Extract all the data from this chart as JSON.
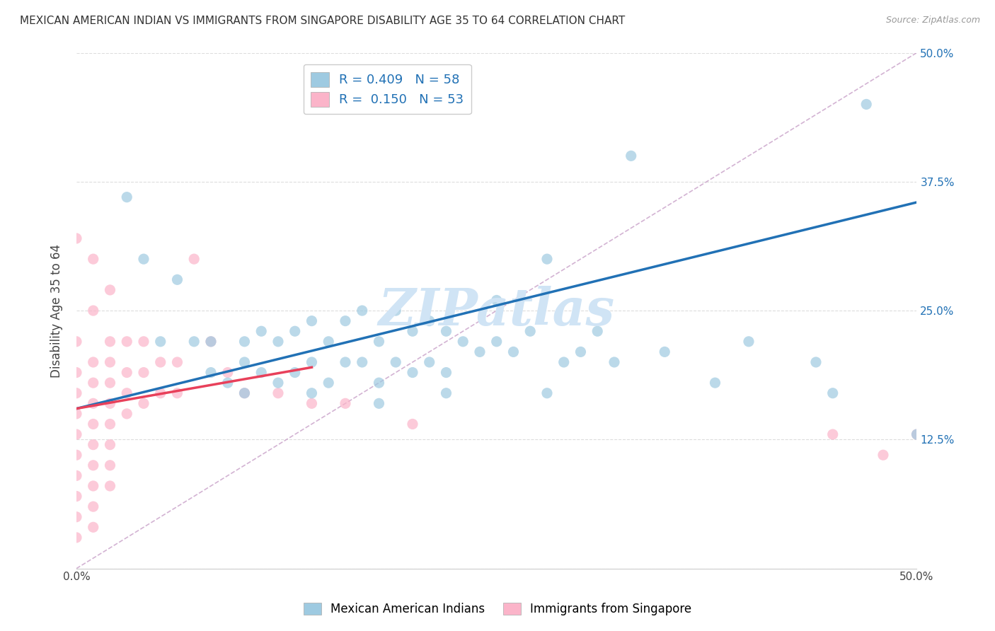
{
  "title": "MEXICAN AMERICAN INDIAN VS IMMIGRANTS FROM SINGAPORE DISABILITY AGE 35 TO 64 CORRELATION CHART",
  "source": "Source: ZipAtlas.com",
  "ylabel": "Disability Age 35 to 64",
  "watermark": "ZIPatlas",
  "blue_R": 0.409,
  "blue_N": 58,
  "pink_R": 0.15,
  "pink_N": 53,
  "xlim": [
    0.0,
    0.5
  ],
  "ylim": [
    0.0,
    0.5
  ],
  "ytick_positions": [
    0.0,
    0.125,
    0.25,
    0.375,
    0.5
  ],
  "right_ytick_labels": [
    "",
    "12.5%",
    "25.0%",
    "37.5%",
    "50.0%"
  ],
  "left_ytick_labels": [
    "",
    "",
    "",
    "",
    ""
  ],
  "xtick_positions": [
    0.0,
    0.05,
    0.1,
    0.15,
    0.2,
    0.25,
    0.3,
    0.35,
    0.4,
    0.45,
    0.5
  ],
  "xtick_labels": [
    "0.0%",
    "",
    "",
    "",
    "",
    "",
    "",
    "",
    "",
    "",
    "50.0%"
  ],
  "legend_label_blue": "Mexican American Indians",
  "legend_label_pink": "Immigrants from Singapore",
  "blue_scatter_x": [
    0.03,
    0.04,
    0.05,
    0.06,
    0.07,
    0.08,
    0.08,
    0.09,
    0.1,
    0.1,
    0.11,
    0.11,
    0.12,
    0.12,
    0.13,
    0.13,
    0.14,
    0.14,
    0.15,
    0.15,
    0.16,
    0.16,
    0.17,
    0.17,
    0.18,
    0.18,
    0.19,
    0.19,
    0.2,
    0.2,
    0.21,
    0.21,
    0.22,
    0.22,
    0.23,
    0.24,
    0.25,
    0.25,
    0.26,
    0.27,
    0.28,
    0.29,
    0.3,
    0.31,
    0.32,
    0.33,
    0.35,
    0.38,
    0.4,
    0.44,
    0.45,
    0.47,
    0.5,
    0.1,
    0.14,
    0.18,
    0.22,
    0.28
  ],
  "blue_scatter_y": [
    0.36,
    0.3,
    0.22,
    0.28,
    0.22,
    0.19,
    0.22,
    0.18,
    0.2,
    0.22,
    0.19,
    0.23,
    0.18,
    0.22,
    0.19,
    0.23,
    0.2,
    0.24,
    0.18,
    0.22,
    0.2,
    0.24,
    0.2,
    0.25,
    0.18,
    0.22,
    0.2,
    0.25,
    0.19,
    0.23,
    0.2,
    0.24,
    0.19,
    0.23,
    0.22,
    0.21,
    0.22,
    0.26,
    0.21,
    0.23,
    0.3,
    0.2,
    0.21,
    0.23,
    0.2,
    0.4,
    0.21,
    0.18,
    0.22,
    0.2,
    0.17,
    0.45,
    0.13,
    0.17,
    0.17,
    0.16,
    0.17,
    0.17
  ],
  "pink_scatter_x": [
    0.0,
    0.0,
    0.0,
    0.0,
    0.0,
    0.0,
    0.0,
    0.0,
    0.0,
    0.0,
    0.01,
    0.01,
    0.01,
    0.01,
    0.01,
    0.01,
    0.01,
    0.01,
    0.01,
    0.01,
    0.02,
    0.02,
    0.02,
    0.02,
    0.02,
    0.02,
    0.02,
    0.02,
    0.03,
    0.03,
    0.03,
    0.03,
    0.04,
    0.04,
    0.04,
    0.05,
    0.05,
    0.06,
    0.06,
    0.07,
    0.08,
    0.09,
    0.1,
    0.12,
    0.14,
    0.16,
    0.2,
    0.45,
    0.48,
    0.5,
    0.02,
    0.01,
    0.0
  ],
  "pink_scatter_y": [
    0.17,
    0.15,
    0.13,
    0.11,
    0.09,
    0.07,
    0.05,
    0.03,
    0.22,
    0.19,
    0.2,
    0.18,
    0.16,
    0.14,
    0.12,
    0.1,
    0.08,
    0.06,
    0.04,
    0.25,
    0.22,
    0.2,
    0.18,
    0.16,
    0.14,
    0.12,
    0.1,
    0.08,
    0.22,
    0.19,
    0.17,
    0.15,
    0.22,
    0.19,
    0.16,
    0.2,
    0.17,
    0.2,
    0.17,
    0.3,
    0.22,
    0.19,
    0.17,
    0.17,
    0.16,
    0.16,
    0.14,
    0.13,
    0.11,
    0.13,
    0.27,
    0.3,
    0.32
  ],
  "blue_line_x": [
    0.0,
    0.5
  ],
  "blue_line_y": [
    0.155,
    0.355
  ],
  "pink_line_x": [
    0.0,
    0.14
  ],
  "pink_line_y": [
    0.155,
    0.195
  ],
  "dashed_line_x": [
    0.0,
    0.5
  ],
  "dashed_line_y": [
    0.0,
    0.5
  ],
  "blue_color": "#9ecae1",
  "pink_color": "#fbb4c9",
  "blue_line_color": "#2171b5",
  "pink_line_color": "#e8405a",
  "dashed_color": "#c8a0c8",
  "watermark_color": "#d0e4f5",
  "background_color": "#ffffff",
  "grid_color": "#dddddd"
}
